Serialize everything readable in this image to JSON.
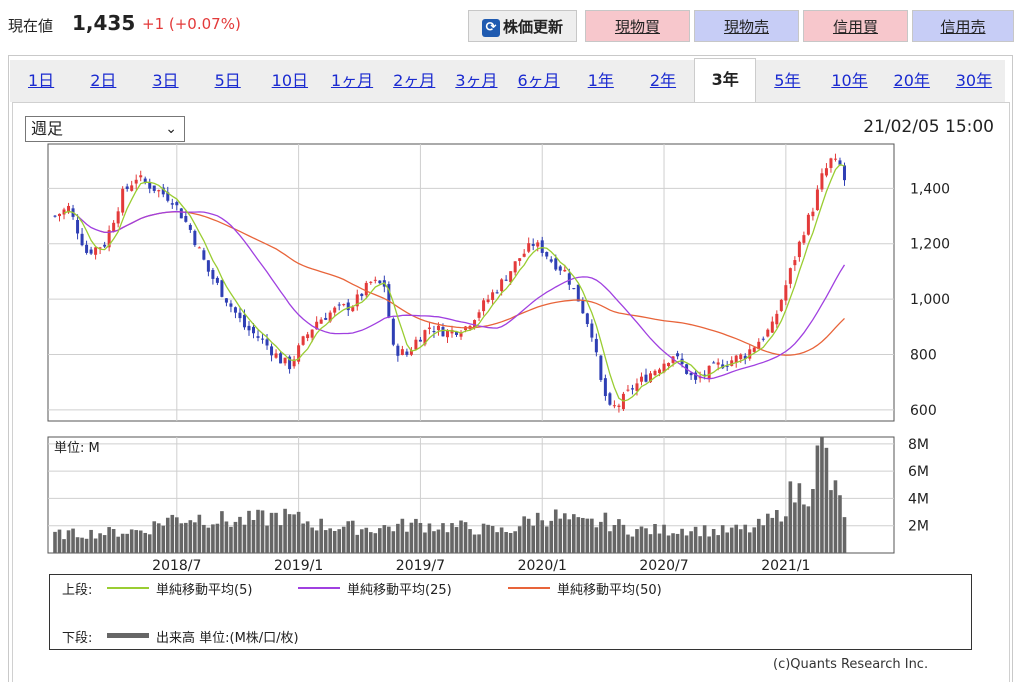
{
  "header": {
    "price_label": "現在値",
    "price_value": "1,435",
    "change": "+1 (+0.07%)",
    "refresh_label": "株価更新",
    "buttons": [
      {
        "label": "現物買",
        "kind": "buy"
      },
      {
        "label": "現物売",
        "kind": "sell"
      },
      {
        "label": "信用買",
        "kind": "buy"
      },
      {
        "label": "信用売",
        "kind": "sell"
      }
    ]
  },
  "tabs": [
    "1日",
    "2日",
    "3日",
    "5日",
    "10日",
    "1ヶ月",
    "2ヶ月",
    "3ヶ月",
    "6ヶ月",
    "1年",
    "2年",
    "3年",
    "5年",
    "10年",
    "20年",
    "30年"
  ],
  "active_tab": "3年",
  "controls": {
    "period_select": "週足",
    "datetime": "21/02/05 15:00"
  },
  "colors": {
    "up": "#e33a3a",
    "down": "#2f3fb4",
    "sma5": "#9acd32",
    "sma25": "#a040e0",
    "sma50": "#e8643a",
    "volume": "#666666",
    "buy_bg": "#f7c7cc",
    "sell_bg": "#c7cdf6"
  },
  "chart_data": {
    "type": "candlestick",
    "price_axis": {
      "ticks": [
        "1,400",
        "1,200",
        "1,000",
        "800",
        "600"
      ],
      "tick_values": [
        1400,
        1200,
        1000,
        800,
        600
      ],
      "range": [
        560,
        1560
      ]
    },
    "volume_axis": {
      "unit_label": "単位: M",
      "ticks": [
        "8M",
        "6M",
        "4M",
        "2M"
      ],
      "tick_values": [
        8,
        6,
        4,
        2
      ],
      "range": [
        0,
        8.5
      ]
    },
    "x_labels": [
      "2018/7",
      "2019/1",
      "2019/7",
      "2020/1",
      "2020/7",
      "2021/1"
    ],
    "price_anchors": [
      [
        0,
        1300
      ],
      [
        3,
        1330
      ],
      [
        7,
        1170
      ],
      [
        11,
        1200
      ],
      [
        15,
        1380
      ],
      [
        18,
        1440
      ],
      [
        22,
        1400
      ],
      [
        26,
        1360
      ],
      [
        30,
        1250
      ],
      [
        34,
        1100
      ],
      [
        38,
        1000
      ],
      [
        42,
        900
      ],
      [
        46,
        850
      ],
      [
        50,
        780
      ],
      [
        52,
        760
      ],
      [
        55,
        850
      ],
      [
        58,
        920
      ],
      [
        62,
        960
      ],
      [
        66,
        980
      ],
      [
        70,
        1060
      ],
      [
        73,
        1050
      ],
      [
        75,
        820
      ],
      [
        78,
        800
      ],
      [
        80,
        850
      ],
      [
        83,
        900
      ],
      [
        87,
        880
      ],
      [
        91,
        900
      ],
      [
        95,
        980
      ],
      [
        99,
        1060
      ],
      [
        103,
        1150
      ],
      [
        106,
        1200
      ],
      [
        108,
        1180
      ],
      [
        110,
        1140
      ],
      [
        113,
        1100
      ],
      [
        116,
        1000
      ],
      [
        119,
        880
      ],
      [
        121,
        700
      ],
      [
        123,
        600
      ],
      [
        125,
        620
      ],
      [
        128,
        680
      ],
      [
        131,
        720
      ],
      [
        134,
        760
      ],
      [
        137,
        800
      ],
      [
        140,
        740
      ],
      [
        142,
        700
      ],
      [
        144,
        730
      ],
      [
        147,
        760
      ],
      [
        150,
        780
      ],
      [
        153,
        800
      ],
      [
        156,
        850
      ],
      [
        159,
        900
      ],
      [
        162,
        1050
      ],
      [
        164,
        1150
      ],
      [
        166,
        1250
      ],
      [
        168,
        1330
      ],
      [
        170,
        1440
      ],
      [
        172,
        1500
      ],
      [
        174,
        1480
      ],
      [
        175,
        1430
      ]
    ],
    "volume_anchors": [
      [
        0,
        1.3
      ],
      [
        10,
        1.4
      ],
      [
        20,
        1.6
      ],
      [
        25,
        2.4
      ],
      [
        32,
        2.5
      ],
      [
        40,
        2.2
      ],
      [
        46,
        2.4
      ],
      [
        50,
        2.6
      ],
      [
        60,
        1.9
      ],
      [
        70,
        1.7
      ],
      [
        80,
        2.0
      ],
      [
        90,
        1.8
      ],
      [
        100,
        1.5
      ],
      [
        106,
        2.4
      ],
      [
        110,
        2.6
      ],
      [
        117,
        2.0
      ],
      [
        122,
        2.2
      ],
      [
        128,
        1.6
      ],
      [
        135,
        1.6
      ],
      [
        140,
        1.7
      ],
      [
        147,
        1.5
      ],
      [
        155,
        1.7
      ],
      [
        160,
        2.5
      ],
      [
        163,
        4.0
      ],
      [
        167,
        4.5
      ],
      [
        169,
        6.5
      ],
      [
        170,
        8.4
      ],
      [
        172,
        4.8
      ],
      [
        175,
        2.9
      ]
    ],
    "sma5_label": "単純移動平均(5)",
    "sma25_label": "単純移動平均(25)",
    "sma50_label": "単純移動平均(50)",
    "volume_legend": "出来高 単位:(M株/口/枚)"
  },
  "legend": {
    "upper_label": "上段:",
    "lower_label": "下段:"
  },
  "copyright": "(c)Quants Research Inc."
}
